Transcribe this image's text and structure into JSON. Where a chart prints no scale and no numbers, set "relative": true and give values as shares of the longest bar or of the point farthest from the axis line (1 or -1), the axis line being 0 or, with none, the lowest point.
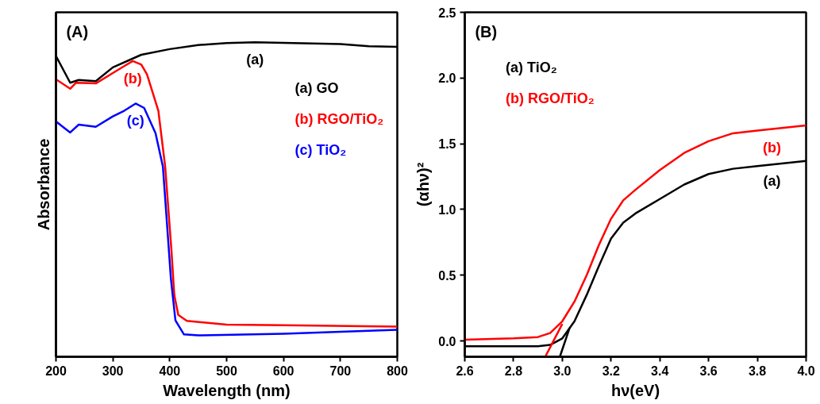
{
  "chart_data": [
    {
      "type": "line",
      "title": "(A)",
      "xlabel": "Wavelength (nm)",
      "ylabel": "Absorbance",
      "relative": true,
      "xlim": [
        200,
        800
      ],
      "xticks": [
        200,
        300,
        400,
        500,
        600,
        700,
        800
      ],
      "grid": false,
      "legend": "top right",
      "annotations": [
        "(a)",
        "(b)",
        "(c)"
      ],
      "series": [
        {
          "name": "(a) GO",
          "color": "#000000",
          "x": [
            200,
            225,
            240,
            270,
            300,
            350,
            400,
            450,
            500,
            550,
            600,
            700,
            750,
            800
          ],
          "values": [
            0.956,
            0.871,
            0.88,
            0.876,
            0.92,
            0.96,
            0.978,
            0.991,
            0.997,
            1.0,
            0.998,
            0.994,
            0.987,
            0.985
          ]
        },
        {
          "name": "(b) RGO/TiO₂",
          "color": "#ff0000",
          "x": [
            200,
            225,
            235,
            270,
            300,
            320,
            335,
            350,
            360,
            380,
            392,
            403,
            408,
            415,
            430,
            500,
            600,
            800
          ],
          "values": [
            0.882,
            0.852,
            0.871,
            0.869,
            0.902,
            0.924,
            0.94,
            0.929,
            0.898,
            0.782,
            0.604,
            0.338,
            0.196,
            0.133,
            0.114,
            0.102,
            0.1,
            0.096
          ]
        },
        {
          "name": "(c) TiO₂",
          "color": "#0000ff",
          "x": [
            200,
            225,
            240,
            270,
            300,
            320,
            340,
            355,
            375,
            388,
            395,
            402,
            410,
            425,
            450,
            600,
            800
          ],
          "values": [
            0.748,
            0.713,
            0.738,
            0.731,
            0.764,
            0.782,
            0.805,
            0.791,
            0.711,
            0.604,
            0.427,
            0.249,
            0.116,
            0.071,
            0.068,
            0.073,
            0.086
          ]
        }
      ]
    },
    {
      "type": "line",
      "title": "(B)",
      "xlabel": "hν(eV)",
      "ylabel": "(αhν)²",
      "xlim": [
        2.6,
        4.0
      ],
      "ylim": [
        -0.12,
        2.5
      ],
      "xticks": [
        2.6,
        2.8,
        {
          "value": 3,
          "label": "3.0"
        },
        3.2,
        3.4,
        3.6,
        3.8,
        {
          "value": 4,
          "label": "4.0"
        }
      ],
      "yticks": [
        {
          "value": 0,
          "label": "0.0"
        },
        0.5,
        {
          "value": 1,
          "label": "1.0"
        },
        1.5,
        {
          "value": 2,
          "label": "2.0"
        },
        2.5
      ],
      "grid": false,
      "legend": "top left",
      "annotations": [
        "(a)",
        "(b)"
      ],
      "series": [
        {
          "name": "(a) TiO₂",
          "color": "#000000",
          "x": [
            2.6,
            2.9,
            2.95,
            3.0,
            3.05,
            3.1,
            3.15,
            3.2,
            3.25,
            3.3,
            3.4,
            3.5,
            3.6,
            3.7,
            3.8,
            3.9,
            4.0
          ],
          "values": [
            -0.04,
            -0.04,
            -0.03,
            0.02,
            0.15,
            0.35,
            0.57,
            0.78,
            0.9,
            0.97,
            1.08,
            1.19,
            1.27,
            1.31,
            1.33,
            1.35,
            1.37
          ]
        },
        {
          "name": "(b) RGO/TiO₂",
          "color": "#ff0000",
          "x": [
            2.6,
            2.8,
            2.9,
            2.95,
            3.0,
            3.05,
            3.1,
            3.15,
            3.2,
            3.25,
            3.3,
            3.4,
            3.5,
            3.6,
            3.7,
            3.8,
            4.0
          ],
          "values": [
            0.01,
            0.02,
            0.03,
            0.06,
            0.15,
            0.3,
            0.5,
            0.73,
            0.93,
            1.07,
            1.15,
            1.3,
            1.43,
            1.52,
            1.58,
            1.6,
            1.64
          ]
        },
        {
          "color": "#000000",
          "x": [
            2.99,
            3.03
          ],
          "values": [
            -0.12,
            0.1
          ]
        },
        {
          "color": "#ff0000",
          "x": [
            2.93,
            3.0
          ],
          "values": [
            -0.12,
            0.13
          ]
        }
      ]
    }
  ]
}
